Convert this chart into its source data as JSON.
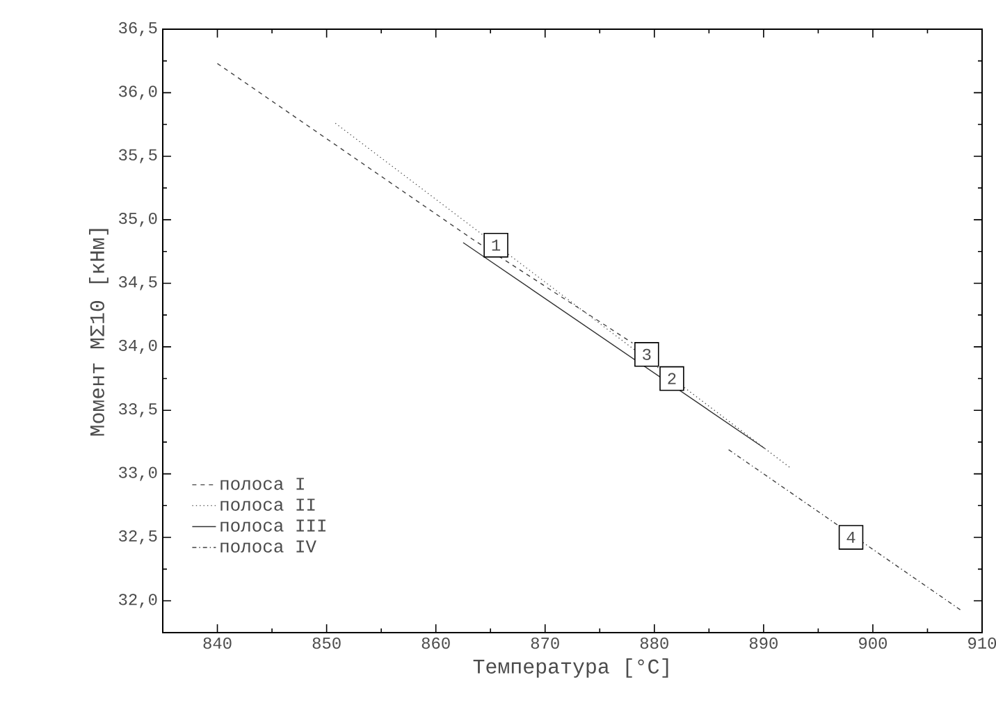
{
  "chart_data": {
    "type": "line",
    "xlabel": "Температура [°C]",
    "ylabel": "Момент MΣ10 [кНм]",
    "xlim": [
      835,
      910
    ],
    "ylim": [
      31.75,
      36.5
    ],
    "xticks": [
      840,
      850,
      860,
      870,
      880,
      890,
      900,
      910
    ],
    "yticks": [
      {
        "value": 32.0,
        "label": "32,0"
      },
      {
        "value": 32.5,
        "label": "32,5"
      },
      {
        "value": 33.0,
        "label": "33,0"
      },
      {
        "value": 33.5,
        "label": "33,5"
      },
      {
        "value": 34.0,
        "label": "34,0"
      },
      {
        "value": 34.5,
        "label": "34,5"
      },
      {
        "value": 35.0,
        "label": "35,0"
      },
      {
        "value": 35.5,
        "label": "35,5"
      },
      {
        "value": 36.0,
        "label": "36,0"
      },
      {
        "value": 36.5,
        "label": "36,5"
      }
    ],
    "grid": false,
    "legend": "bottom left",
    "marker": "none",
    "series": [
      {
        "name": "полоса I",
        "color": "#404040",
        "line_style": "dashed",
        "x": [
          840,
          863.3,
          878
        ],
        "values": [
          36.23,
          34.85,
          34.03
        ]
      },
      {
        "name": "полоса II",
        "color": "#505050",
        "line_style": "dotted",
        "x": [
          850.8,
          892.4
        ],
        "values": [
          35.76,
          33.05
        ]
      },
      {
        "name": "полоса III",
        "color": "#303030",
        "line_style": "solid",
        "x": [
          862.5,
          890.1
        ],
        "values": [
          34.82,
          33.2
        ]
      },
      {
        "name": "полоса IV",
        "color": "#404040",
        "line_style": "dashdot",
        "x": [
          886.8,
          908
        ],
        "values": [
          33.19,
          31.93
        ]
      }
    ],
    "annotations": [
      {
        "text": "1",
        "x": 865.5,
        "y": 34.8
      },
      {
        "text": "2",
        "x": 881.6,
        "y": 33.75
      },
      {
        "text": "3",
        "x": 879.3,
        "y": 33.94
      },
      {
        "text": "4",
        "x": 898,
        "y": 32.5
      }
    ]
  }
}
